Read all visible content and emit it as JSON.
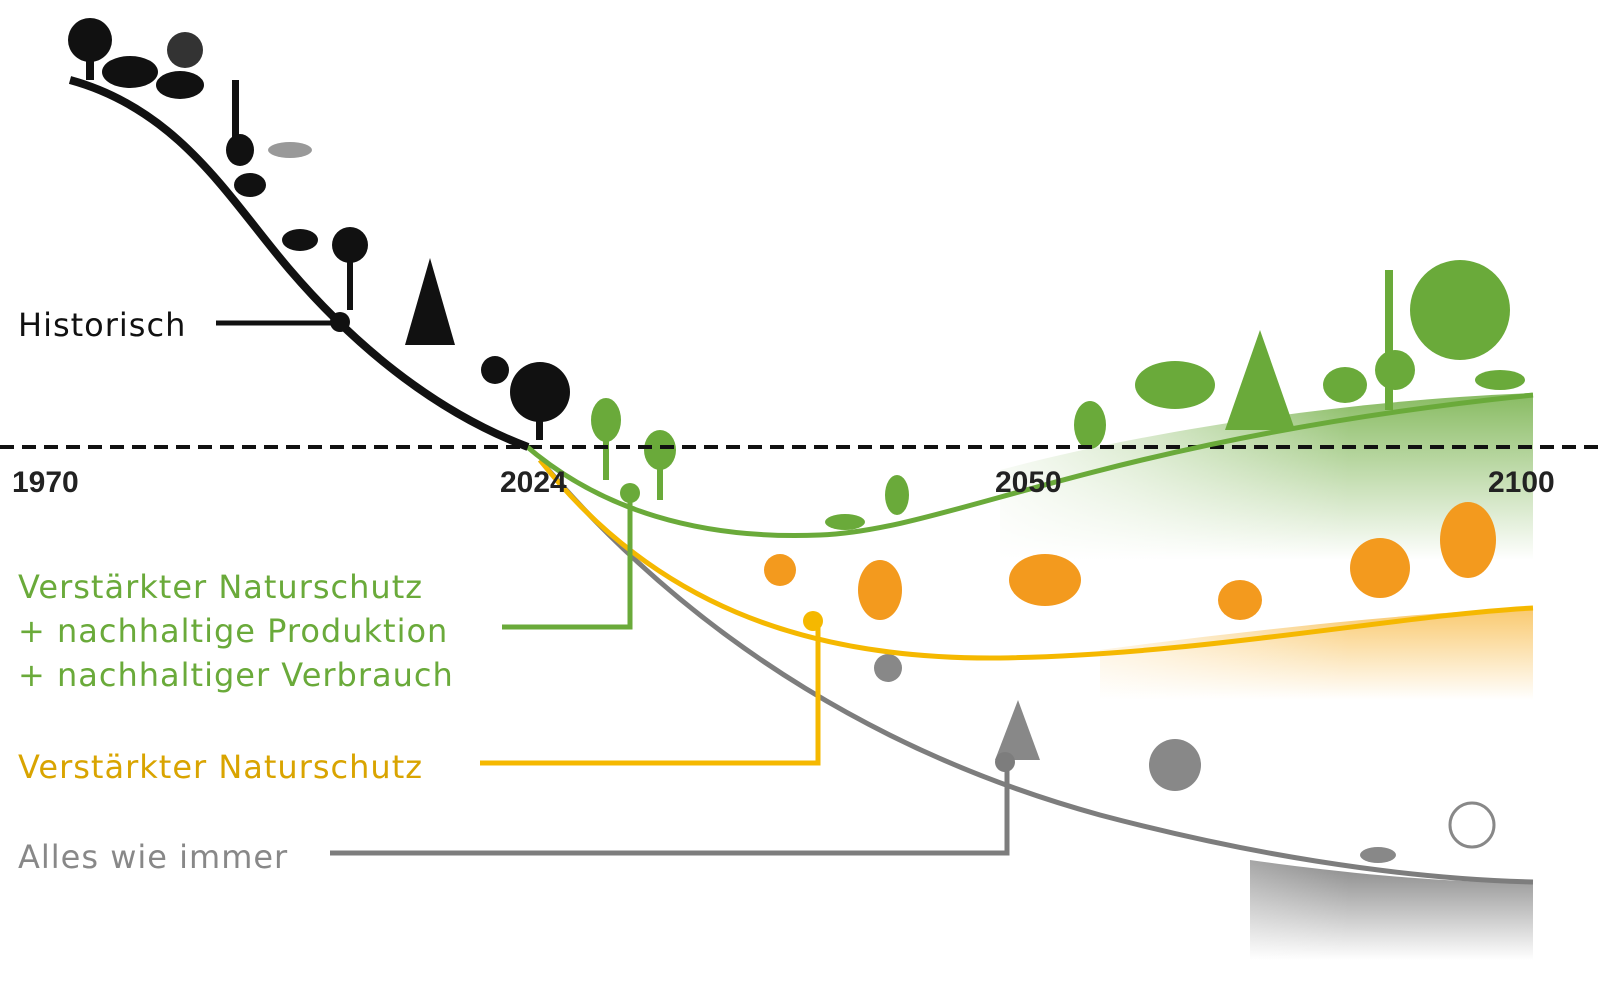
{
  "years": [
    "1970",
    "2024",
    "2050",
    "2100"
  ],
  "labels": {
    "historical": "Historisch",
    "green": [
      "Verstärkter Naturschutz",
      "+ nachhaltige Produktion",
      "+ nachhaltiger Verbrauch"
    ],
    "yellow": "Verstärkter Naturschutz",
    "gray": "Alles wie immer"
  }
}
